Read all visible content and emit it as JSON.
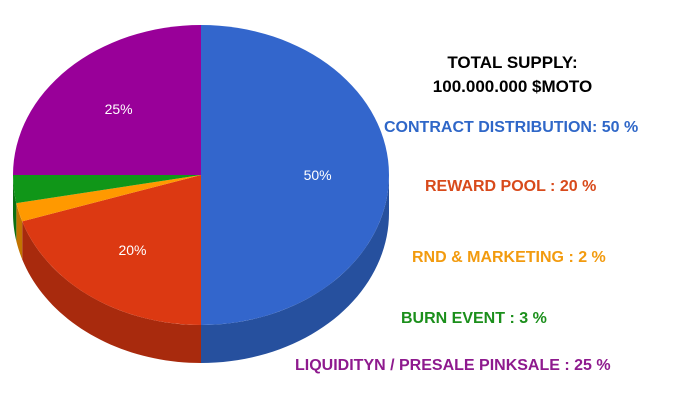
{
  "chart_data": {
    "type": "pie",
    "title_line1": "TOTAL SUPPLY:",
    "title_line2": "100.000.000 $MOTO",
    "slices": [
      {
        "label": "CONTRACT DISTRIBUTION: 50 %",
        "value": 50,
        "slice_label": "50%",
        "color": "#3366cc",
        "side_color": "#26509e"
      },
      {
        "label": "REWARD POOL :  20 %",
        "value": 20,
        "slice_label": "20%",
        "color": "#dc3912",
        "side_color": "#a82a0d"
      },
      {
        "label": "RND & MARKETING :  2 %",
        "value": 2,
        "slice_label": "",
        "color": "#ff9900",
        "side_color": "#c27400"
      },
      {
        "label": "BURN EVENT :  3 %",
        "value": 3,
        "slice_label": "",
        "color": "#109618",
        "side_color": "#0b7011"
      },
      {
        "label": "LIQUIDITYN / PRESALE PINKSALE :  25 %",
        "value": 25,
        "slice_label": "25%",
        "color": "#990099",
        "side_color": "#700070"
      }
    ],
    "legend_colors": [
      "#2f67c8",
      "#d84a1b",
      "#f29b0f",
      "#1b8f1b",
      "#8e1a8e"
    ]
  }
}
